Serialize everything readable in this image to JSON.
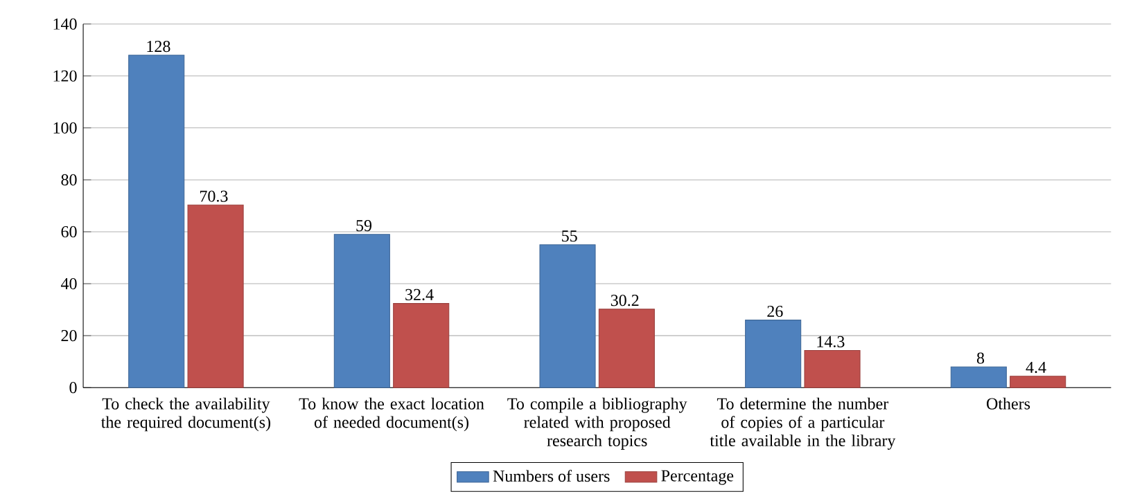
{
  "chart_data": {
    "type": "bar",
    "categories": [
      "To check the availability the required document(s)",
      "To know the exact location of needed document(s)",
      "To compile a bibliography related with proposed research topics",
      "To determine the number of copies of a particular title available in the library",
      "Others"
    ],
    "series": [
      {
        "name": "Numbers of users",
        "color": "#4f81bd",
        "values": [
          128,
          59,
          55,
          26,
          8
        ],
        "value_labels": [
          "128",
          "59",
          "55",
          "26",
          "8"
        ]
      },
      {
        "name": "Percentage",
        "color": "#c0504d",
        "values": [
          70.3,
          32.4,
          30.2,
          14.3,
          4.4
        ],
        "value_labels": [
          "70.3",
          "32.4",
          "30.2",
          "14.3",
          "4.4"
        ]
      }
    ],
    "ylim": [
      0,
      140
    ],
    "yticks": [
      0,
      20,
      40,
      60,
      80,
      100,
      120,
      140
    ],
    "grid": "y",
    "legend": "bottom"
  }
}
